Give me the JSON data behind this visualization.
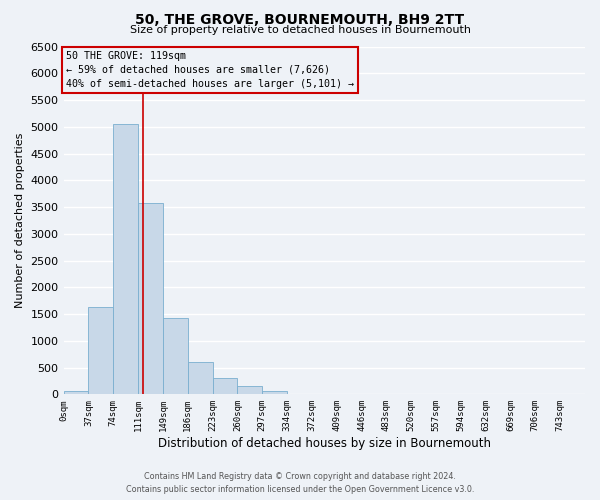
{
  "title": "50, THE GROVE, BOURNEMOUTH, BH9 2TT",
  "subtitle": "Size of property relative to detached houses in Bournemouth",
  "xlabel": "Distribution of detached houses by size in Bournemouth",
  "ylabel": "Number of detached properties",
  "footer_line1": "Contains HM Land Registry data © Crown copyright and database right 2024.",
  "footer_line2": "Contains public sector information licensed under the Open Government Licence v3.0.",
  "bin_labels": [
    "0sqm",
    "37sqm",
    "74sqm",
    "111sqm",
    "149sqm",
    "186sqm",
    "223sqm",
    "260sqm",
    "297sqm",
    "334sqm",
    "372sqm",
    "409sqm",
    "446sqm",
    "483sqm",
    "520sqm",
    "557sqm",
    "594sqm",
    "632sqm",
    "669sqm",
    "706sqm",
    "743sqm"
  ],
  "bar_values": [
    70,
    1630,
    5060,
    3570,
    1430,
    610,
    300,
    150,
    60,
    0,
    0,
    0,
    0,
    0,
    0,
    0,
    0,
    0,
    0,
    0
  ],
  "bin_edges": [
    0,
    37,
    74,
    111,
    148,
    185,
    222,
    259,
    296,
    333,
    370,
    407,
    444,
    481,
    518,
    555,
    592,
    629,
    666,
    703,
    740,
    777
  ],
  "ylim": [
    0,
    6500
  ],
  "yticks": [
    0,
    500,
    1000,
    1500,
    2000,
    2500,
    3000,
    3500,
    4000,
    4500,
    5000,
    5500,
    6000,
    6500
  ],
  "bar_color": "#c8d8e8",
  "bar_edgecolor": "#7aafcf",
  "vline_x": 119,
  "vline_color": "#cc0000",
  "annotation_title": "50 THE GROVE: 119sqm",
  "annotation_line1": "← 59% of detached houses are smaller (7,626)",
  "annotation_line2": "40% of semi-detached houses are larger (5,101) →",
  "annotation_box_color": "#cc0000",
  "bg_color": "#eef2f7",
  "grid_color": "#ffffff"
}
